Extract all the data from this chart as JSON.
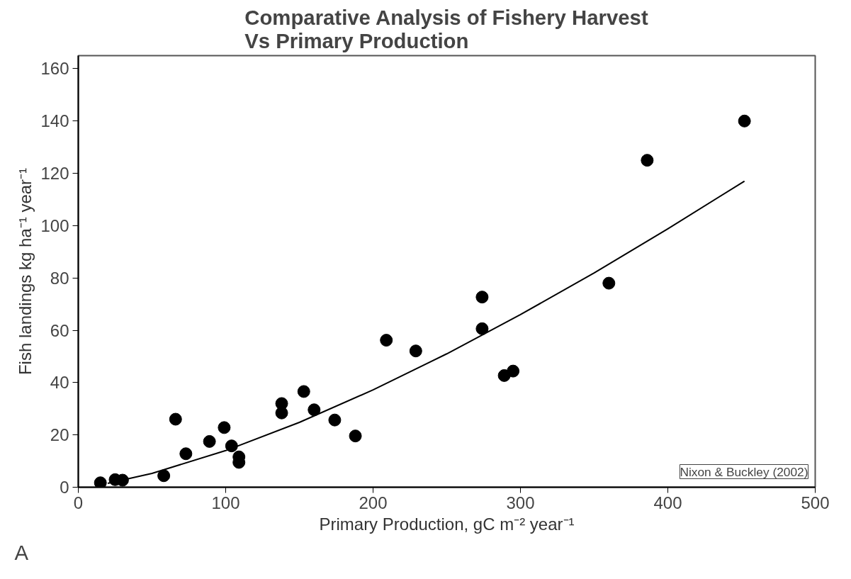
{
  "chart_data": {
    "type": "scatter",
    "title": "Comparative Analysis of Fishery Harvest\nVs Primary Production",
    "xlabel": "Primary Production, gC m⁻² year⁻¹",
    "ylabel": "Fish landings kg ha⁻¹ year⁻¹",
    "annotations": [
      "Nixon & Buckley (2002)",
      "A"
    ],
    "xlim": [
      0,
      500
    ],
    "ylim": [
      0,
      165
    ],
    "xticks": [
      0,
      100,
      200,
      300,
      400,
      500
    ],
    "yticks": [
      0,
      20,
      40,
      60,
      80,
      100,
      120,
      140,
      160
    ],
    "grid": false,
    "series": [
      {
        "marker": "circle",
        "color": "#000000",
        "x": [
          15,
          25,
          30,
          58,
          66,
          73,
          89,
          99,
          104,
          109,
          109,
          138,
          138,
          153,
          160,
          174,
          188,
          209,
          229,
          274,
          274,
          289,
          295,
          360,
          386,
          452
        ],
        "values": [
          1.7,
          2.9,
          2.7,
          4.4,
          26,
          12.8,
          17.5,
          22.8,
          15.8,
          11.6,
          9.5,
          32,
          28.4,
          36.6,
          29.6,
          25.7,
          19.6,
          56.2,
          52.1,
          72.7,
          60.6,
          42.7,
          44.4,
          78,
          125,
          140
        ]
      },
      {
        "type": "line",
        "color": "#000000",
        "line_style": "solid",
        "x": [
          20,
          50,
          100,
          150,
          200,
          250,
          300,
          350,
          400,
          452
        ],
        "values": [
          1.5,
          5.3,
          14,
          24.8,
          37.2,
          51,
          66,
          81.9,
          98.8,
          117
        ]
      }
    ]
  }
}
